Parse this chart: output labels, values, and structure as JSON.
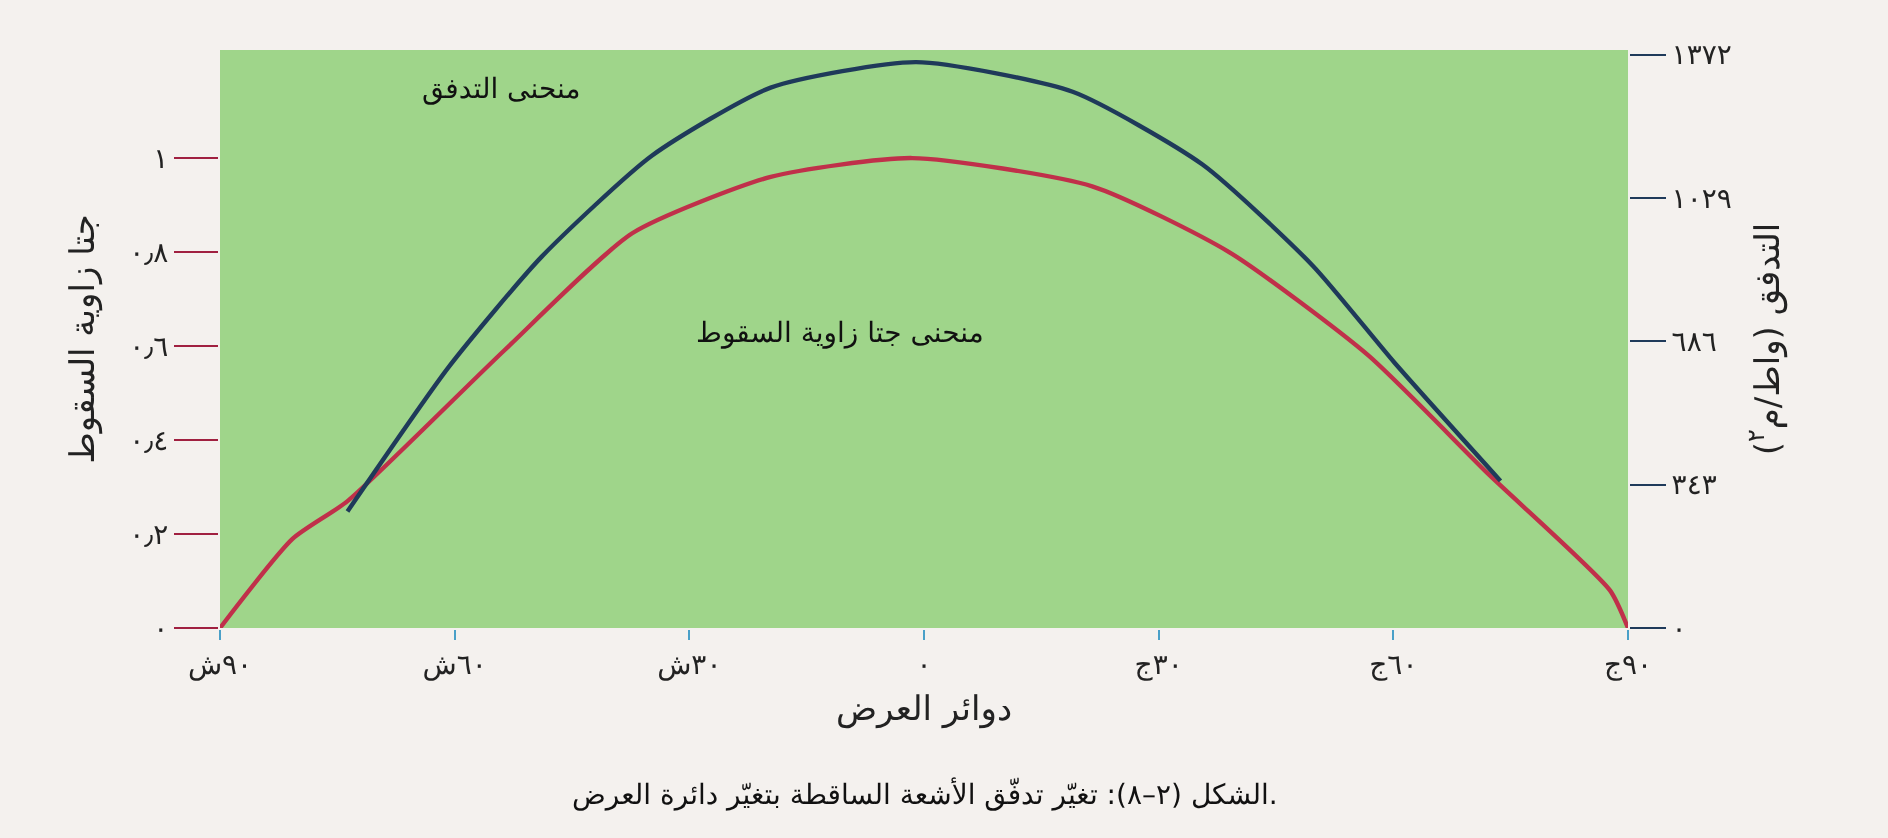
{
  "chart_data": {
    "type": "line",
    "xlabel": "دوائر العرض",
    "ylabel": "جتا زاوية السقوط",
    "y2label": "التدفق (واط/م$^{٢}$)",
    "xlim": [
      -90,
      90
    ],
    "xticks": [
      {
        "value": -90,
        "label": "٩٠ش"
      },
      {
        "value": -60,
        "label": "٦٠ش"
      },
      {
        "value": -30,
        "label": "٣٠ش"
      },
      {
        "value": 0,
        "label": "٠"
      },
      {
        "value": 30,
        "label": "٣٠ج"
      },
      {
        "value": 60,
        "label": "٦٠ج"
      },
      {
        "value": 90,
        "label": "٩٠ج"
      }
    ],
    "ylim": [
      0,
      1.23
    ],
    "yticks": [
      {
        "value": 0,
        "label": "٠"
      },
      {
        "value": 0.2,
        "label": "٠٫٢"
      },
      {
        "value": 0.4,
        "label": "٠٫٤"
      },
      {
        "value": 0.6,
        "label": "٠٫٦"
      },
      {
        "value": 0.8,
        "label": "٠٫٨"
      },
      {
        "value": 1,
        "label": "١"
      }
    ],
    "y2lim": [
      0,
      1383
    ],
    "y2ticks": [
      {
        "value": 0,
        "label": "٠"
      },
      {
        "value": 343,
        "label": "٣٤٣"
      },
      {
        "value": 686,
        "label": "٦٨٦"
      },
      {
        "value": 1029,
        "label": "١٠٢٩"
      },
      {
        "value": 1372,
        "label": "١٣٧٢"
      }
    ],
    "series": [
      {
        "color": "#c0304a",
        "x": [
          -90,
          -80.7,
          -73.7,
          -53.7,
          -37.3,
          -19.6,
          -1.5,
          21.5,
          39,
          56.8,
          72,
          87.7,
          90
        ],
        "values": [
          0,
          0.19,
          0.27,
          0.59,
          0.84,
          0.96,
          1.0,
          0.94,
          0.8,
          0.58,
          0.33,
          0.08,
          0
        ]
      },
      {
        "color": "#1f3a5a",
        "axis": "y2",
        "x": [
          -73.7,
          -60.7,
          -48.9,
          -34.8,
          -19.6,
          -1,
          19,
          35.6,
          49.7,
          60.1,
          73.7
        ],
        "values": [
          279,
          626,
          888,
          1130,
          1293,
          1354,
          1283,
          1109,
          867,
          636,
          352
        ]
      }
    ],
    "annotations": [
      "منحنى التدفق",
      "منحنى جتا زاوية السقوط",
      "الشكل (٢–٨): تغيّر تدفّق الأشعة الساقطة بتغيّر دائرة العرض."
    ],
    "grid": false,
    "marker": "none",
    "line_style": "solid"
  }
}
